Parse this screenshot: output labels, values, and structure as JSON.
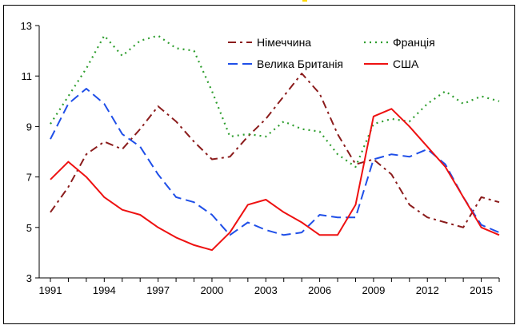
{
  "chart_data": {
    "type": "line",
    "x": [
      1991,
      1992,
      1993,
      1994,
      1995,
      1996,
      1997,
      1998,
      1999,
      2000,
      2001,
      2002,
      2003,
      2004,
      2005,
      2006,
      2007,
      2008,
      2009,
      2010,
      2011,
      2012,
      2013,
      2014,
      2015,
      2016
    ],
    "xticks": [
      "1991",
      "1994",
      "1997",
      "2000",
      "2003",
      "2006",
      "2009",
      "2012",
      "2015"
    ],
    "yticks": [
      "3",
      "5",
      "7",
      "9",
      "11",
      "13"
    ],
    "ylim": [
      3,
      13
    ],
    "xlim": [
      1991,
      2016
    ],
    "grid": false,
    "legend_position": "top-right",
    "series": [
      {
        "name": "Німеччина",
        "color": "#8b1c1c",
        "style": "dash-dot",
        "values": [
          5.6,
          6.6,
          7.9,
          8.4,
          8.1,
          8.9,
          9.8,
          9.2,
          8.4,
          7.7,
          7.8,
          8.6,
          9.3,
          10.2,
          11.1,
          10.3,
          8.7,
          7.5,
          7.7,
          7.1,
          5.9,
          5.4,
          5.2,
          5.0,
          6.2,
          6.0
        ]
      },
      {
        "name": "Франція",
        "color": "#2e9e2e",
        "style": "dotted",
        "values": [
          9.1,
          10.2,
          11.3,
          12.6,
          11.8,
          12.4,
          12.6,
          12.1,
          12.0,
          10.4,
          8.6,
          8.7,
          8.6,
          9.2,
          8.9,
          8.8,
          7.9,
          7.4,
          9.1,
          9.3,
          9.2,
          9.9,
          10.4,
          9.9,
          10.2,
          10.0
        ]
      },
      {
        "name": "Велика Британія",
        "color": "#1f4fe8",
        "style": "dashed",
        "values": [
          8.5,
          9.9,
          10.5,
          9.9,
          8.7,
          8.2,
          7.1,
          6.2,
          6.0,
          5.5,
          4.7,
          5.2,
          4.9,
          4.7,
          4.8,
          5.5,
          5.4,
          5.4,
          7.7,
          7.9,
          7.8,
          8.1,
          7.5,
          6.2,
          5.1,
          4.8
        ]
      },
      {
        "name": "США",
        "color": "#ee1111",
        "style": "solid",
        "values": [
          6.9,
          7.6,
          7.0,
          6.2,
          5.7,
          5.5,
          5.0,
          4.6,
          4.3,
          4.1,
          4.8,
          5.9,
          6.1,
          5.6,
          5.2,
          4.7,
          4.7,
          5.9,
          9.4,
          9.7,
          9.0,
          8.2,
          7.4,
          6.2,
          5.0,
          4.7
        ]
      }
    ]
  }
}
